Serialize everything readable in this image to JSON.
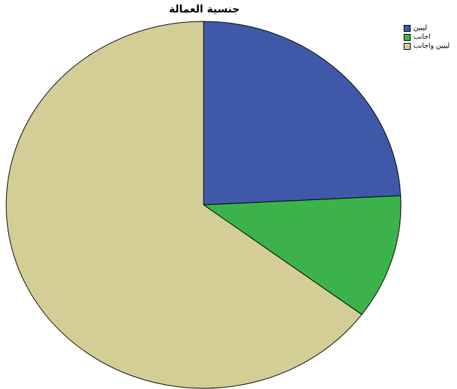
{
  "chart_data": {
    "type": "pie",
    "title": "جنسية العمالة",
    "legend_position": "top-right",
    "slices": [
      {
        "label": "ليبين",
        "value": 24.2,
        "color": "#3f59a8"
      },
      {
        "label": "اجانب",
        "value": 11.0,
        "color": "#3bb34a"
      },
      {
        "label": "ليبين واجانب",
        "value": 64.8,
        "color": "#d3ce96"
      }
    ]
  }
}
